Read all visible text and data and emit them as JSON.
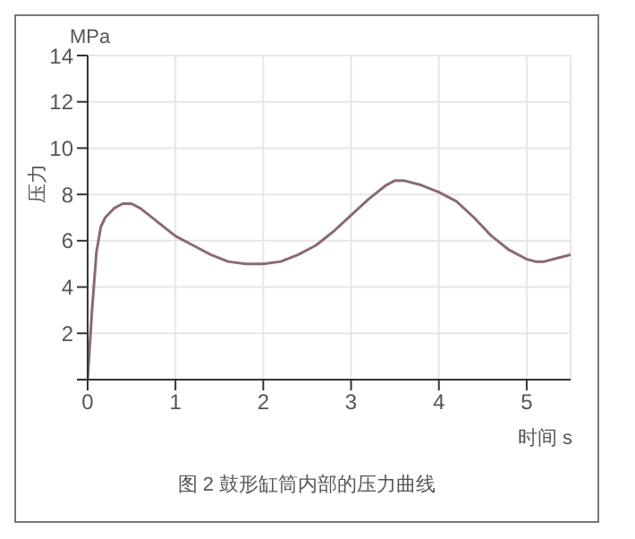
{
  "chart_data": {
    "type": "line",
    "title": "图 2 鼓形缸筒内部的压力曲线",
    "xlabel": "时间 s",
    "ylabel": "压力",
    "annotations": [
      "MPa"
    ],
    "x": [
      0,
      0.05,
      0.1,
      0.15,
      0.2,
      0.3,
      0.4,
      0.5,
      0.6,
      0.7,
      0.8,
      1.0,
      1.2,
      1.4,
      1.6,
      1.8,
      2.0,
      2.2,
      2.4,
      2.6,
      2.8,
      3.0,
      3.2,
      3.4,
      3.5,
      3.6,
      3.8,
      4.0,
      4.2,
      4.4,
      4.6,
      4.8,
      5.0,
      5.1,
      5.2,
      5.3,
      5.4,
      5.5
    ],
    "series": [
      {
        "color": "#8a6a72",
        "values": [
          0,
          3.0,
          5.5,
          6.6,
          7.0,
          7.4,
          7.6,
          7.6,
          7.4,
          7.1,
          6.8,
          6.2,
          5.8,
          5.4,
          5.1,
          5.0,
          5.0,
          5.1,
          5.4,
          5.8,
          6.4,
          7.1,
          7.8,
          8.4,
          8.6,
          8.6,
          8.4,
          8.1,
          7.7,
          7.0,
          6.2,
          5.6,
          5.2,
          5.1,
          5.1,
          5.2,
          5.3,
          5.4
        ]
      }
    ],
    "xlim": [
      0,
      5.5
    ],
    "xticks": [
      0,
      1,
      2,
      3,
      4,
      5
    ],
    "ylim": [
      0,
      14
    ],
    "yticks": [
      {
        "value": 0,
        "label": null
      },
      2,
      4,
      6,
      8,
      10,
      12,
      14
    ],
    "grid": true
  }
}
